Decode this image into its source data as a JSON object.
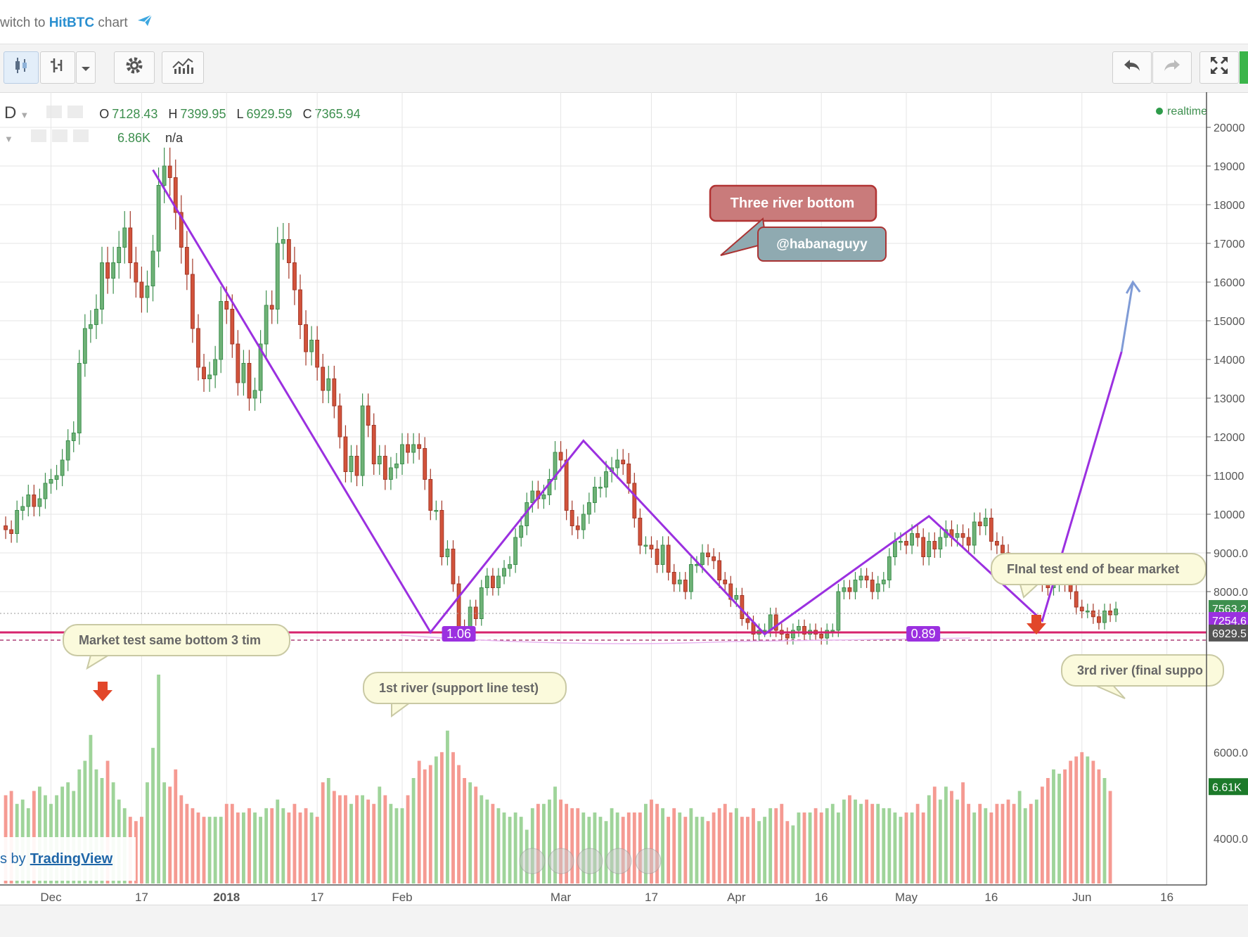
{
  "topbar": {
    "switch_prefix": "witch to",
    "switch_brand": "HitBTC",
    "switch_suffix": "chart"
  },
  "toolbar": {
    "buttons": [
      {
        "name": "candles-style-button",
        "icon": "candlestick-icon"
      },
      {
        "name": "bar-style-button",
        "icon": "bars-icon"
      },
      {
        "name": "chart-type-dropdown",
        "icon": "chevron-down-icon"
      },
      {
        "name": "settings-button",
        "icon": "gear-icon"
      },
      {
        "name": "indicators-button",
        "icon": "indicators-icon"
      },
      {
        "name": "undo-button",
        "icon": "undo-icon"
      },
      {
        "name": "redo-button",
        "icon": "redo-icon"
      },
      {
        "name": "fullscreen-button",
        "icon": "fullscreen-icon"
      }
    ]
  },
  "legend": {
    "interval": "D",
    "o_label": "O",
    "o": "7128.43",
    "h_label": "H",
    "h": "7399.95",
    "l_label": "L",
    "l": "6929.59",
    "c_label": "C",
    "c": "7365.94",
    "volume": "6.86K",
    "volume_extra": "n/a"
  },
  "realtime": "realtime",
  "credit": {
    "prefix": "s by",
    "brand": "TradingView"
  },
  "colors": {
    "up": "#3d8f4e",
    "up_fill": "#6fb277",
    "down": "#a33727",
    "down_fill": "#d2533b",
    "trend": "#9b30e0",
    "support": "#d6236c",
    "grid": "#e6e6e6"
  },
  "chart_data": {
    "type": "candlestick",
    "price_axis_labels": [
      "20000",
      "19000",
      "18000",
      "17000",
      "16000",
      "15000",
      "14000",
      "13000",
      "12000",
      "11000",
      "10000",
      "9000.0",
      "8000.0"
    ],
    "price_axis_values": [
      20000,
      19000,
      18000,
      17000,
      16000,
      15000,
      14000,
      13000,
      12000,
      11000,
      10000,
      9000,
      8000
    ],
    "volume_axis_labels": [
      "6000.0",
      "4000.0"
    ],
    "volume_axis_values": [
      6000,
      4000
    ],
    "time_labels": [
      "Dec",
      "17",
      "2018",
      "17",
      "Feb",
      "Mar",
      "17",
      "Apr",
      "16",
      "May",
      "16",
      "Jun",
      "16"
    ],
    "price_badges": {
      "current": "7563.2",
      "hidden": "7254.6",
      "low": "6929.5",
      "volume": "6.61K"
    },
    "support_level": 7254,
    "low_level": 6929,
    "zigzag": [
      {
        "x": "2017-12-19",
        "y": 18900
      },
      {
        "x": "2018-02-06",
        "y": 6950
      },
      {
        "x": "2018-03-05",
        "y": 11900
      },
      {
        "x": "2018-04-06",
        "y": 6900
      },
      {
        "x": "2018-05-05",
        "y": 9950
      },
      {
        "x": "2018-05-25",
        "y": 7250
      },
      {
        "x": "2018-06-08",
        "y": 14200
      }
    ],
    "projection_end": {
      "x": "2018-06-10",
      "y": 16000
    },
    "ratios": [
      {
        "label": "1.06",
        "x": "2018-02-11"
      },
      {
        "label": "0.89",
        "x": "2018-05-04"
      }
    ],
    "annotations": [
      {
        "text": "Three river bottom",
        "x": "2018-04-02",
        "y": 18300,
        "style": "red"
      },
      {
        "text": "@habanaguyy",
        "x": "2018-04-04",
        "y": 17400,
        "style": "slate"
      },
      {
        "text": "Market test same bottom 3 tim",
        "x": "2017-12-11",
        "y": 8800,
        "style": "callout"
      },
      {
        "text": "1st river (support line test)",
        "x": "2018-02-03",
        "y": 7600,
        "style": "callout"
      },
      {
        "text": "FInal test end of bear market",
        "x": "2018-05-29",
        "y": 10200,
        "style": "callout"
      },
      {
        "text": "3rd river (final suppo",
        "x": "2018-05-30",
        "y": 8000,
        "style": "callout"
      }
    ],
    "x_start": "2017-11-22",
    "x_end": "2018-06-23",
    "ohlc_note": "approximate daily closes read from chart",
    "closes": [
      9600,
      9500,
      10100,
      10200,
      10500,
      10200,
      10400,
      10800,
      10900,
      11000,
      11400,
      11900,
      12100,
      13900,
      14800,
      14900,
      15300,
      16500,
      16100,
      16500,
      16900,
      17400,
      16500,
      16000,
      15600,
      15900,
      16800,
      18500,
      19000,
      18700,
      17800,
      16900,
      16200,
      14800,
      13800,
      13500,
      13600,
      14000,
      15500,
      15300,
      14400,
      13400,
      13900,
      13000,
      13200,
      14400,
      15400,
      15300,
      17000,
      17100,
      16500,
      15800,
      14900,
      14200,
      14500,
      13800,
      13200,
      13500,
      12800,
      12000,
      11100,
      11500,
      11000,
      12800,
      12300,
      11300,
      11500,
      10900,
      11200,
      11300,
      11800,
      11600,
      11800,
      11700,
      10900,
      10100,
      10100,
      8900,
      9100,
      8200,
      7100,
      6900,
      7600,
      7300,
      8100,
      8400,
      8100,
      8400,
      8600,
      8700,
      9400,
      9700,
      10300,
      10600,
      10400,
      10500,
      10900,
      11600,
      11400,
      10100,
      9700,
      9600,
      10000,
      10300,
      10700,
      10700,
      11100,
      11200,
      11400,
      11300,
      10800,
      9900,
      9200,
      9200,
      9100,
      8700,
      9200,
      8500,
      8200,
      8300,
      8000,
      8700,
      8700,
      9000,
      8900,
      8800,
      8300,
      8200,
      7800,
      7900,
      7300,
      7200,
      6900,
      7000,
      7000,
      7400,
      7000,
      6900,
      6800,
      7000,
      7100,
      6900,
      7000,
      6900,
      6800,
      7000,
      7000,
      8000,
      8100,
      8000,
      8300,
      8400,
      8300,
      8000,
      8200,
      8300,
      8900,
      9300,
      9300,
      9200,
      9500,
      9400,
      8900,
      9300,
      9100,
      9400,
      9600,
      9400,
      9500,
      9400,
      9200,
      9800,
      9700,
      9900,
      9300,
      9200,
      9000,
      8500,
      8400,
      8600,
      8700,
      8500,
      8700,
      8200,
      8100,
      8200,
      8400,
      8200,
      8000,
      7600,
      7500,
      7500,
      7350,
      7200,
      7500,
      7400,
      7550
    ],
    "volumes": [
      5000,
      5100,
      4800,
      4900,
      4700,
      5100,
      5200,
      5000,
      4800,
      5000,
      5200,
      5300,
      5100,
      5600,
      5800,
      6400,
      5600,
      5400,
      5800,
      5300,
      4900,
      4700,
      4500,
      4400,
      4500,
      5300,
      6100,
      7800,
      5300,
      5200,
      5600,
      5000,
      4800,
      4700,
      4600,
      4500,
      4500,
      4500,
      4500,
      4800,
      4800,
      4600,
      4600,
      4700,
      4600,
      4500,
      4700,
      4700,
      4900,
      4700,
      4600,
      4800,
      4600,
      4700,
      4600,
      4500,
      5300,
      5400,
      5100,
      5000,
      5000,
      4800,
      5000,
      5000,
      4900,
      4800,
      5200,
      5000,
      4800,
      4700,
      4700,
      5000,
      5400,
      5800,
      5600,
      5700,
      5900,
      6000,
      6500,
      6000,
      5700,
      5400,
      5300,
      5200,
      5000,
      4900,
      4800,
      4700,
      4600,
      4500,
      4600,
      4500,
      4200,
      4700,
      4800,
      4800,
      4900,
      5200,
      4900,
      4800,
      4700,
      4700,
      4600,
      4500,
      4600,
      4500,
      4400,
      4700,
      4600,
      4500,
      4600,
      4600,
      4600,
      4800,
      4900,
      4800,
      4700,
      4500,
      4700,
      4600,
      4500,
      4700,
      4500,
      4500,
      4400,
      4600,
      4700,
      4800,
      4600,
      4700,
      4500,
      4500,
      4700,
      4400,
      4500,
      4700,
      4700,
      4800,
      4400,
      4300,
      4600,
      4600,
      4600,
      4700,
      4600,
      4700,
      4800,
      4600,
      4900,
      5000,
      4900,
      4800,
      4900,
      4800,
      4800,
      4700,
      4700,
      4600,
      4500,
      4600,
      4600,
      4800,
      4600,
      5000,
      5200,
      4900,
      5200,
      5100,
      4900,
      5300,
      4800,
      4600,
      4800,
      4700,
      4600,
      4800,
      4800,
      4900,
      4800,
      5100,
      4700,
      4800,
      4900,
      5200,
      5400,
      5600,
      5500,
      5600,
      5800,
      5900,
      6000,
      5900,
      5800,
      5600,
      5400,
      5100
    ]
  }
}
